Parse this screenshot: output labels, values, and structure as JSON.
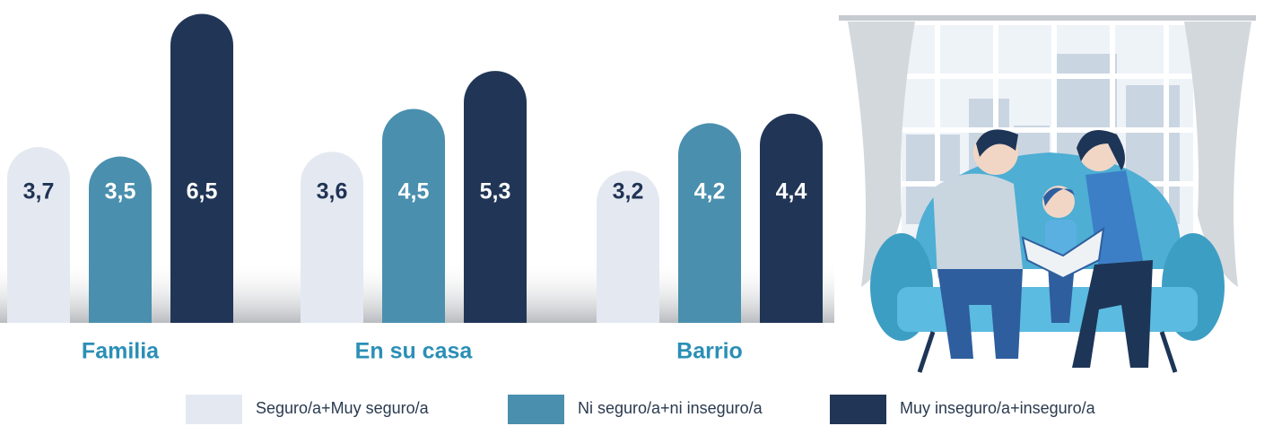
{
  "chart_data": {
    "type": "bar",
    "categories": [
      "Familia",
      "En su casa",
      "Barrio"
    ],
    "series": [
      {
        "name": "Seguro/a+Muy seguro/a",
        "color": "#e4e9f1",
        "values": [
          3.7,
          3.6,
          3.2
        ],
        "value_labels": [
          "3,7",
          "3,6",
          "3,2"
        ]
      },
      {
        "name": "Ni seguro/a+ni inseguro/a",
        "color": "#4a8fae",
        "values": [
          3.5,
          4.5,
          4.2
        ],
        "value_labels": [
          "3,5",
          "4,5",
          "4,2"
        ]
      },
      {
        "name": "Muy inseguro/a+inseguro/a",
        "color": "#213657",
        "values": [
          6.5,
          5.3,
          4.4
        ],
        "value_labels": [
          "6,5",
          "5,3",
          "4,4"
        ]
      }
    ],
    "legend": "bottom"
  }
}
